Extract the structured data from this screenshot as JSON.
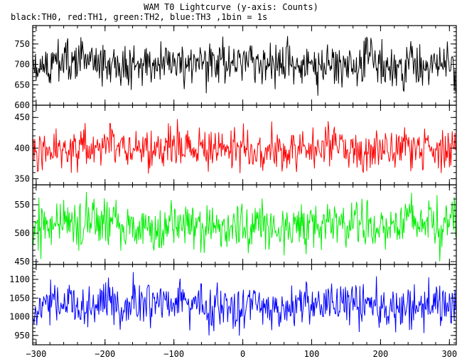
{
  "title": "WAM T0 Lightcurve (y-axis: Counts)",
  "subtitle": "black:TH0, red:TH1, green:TH2, blue:TH3 ,1bin = 1s",
  "chart_data": {
    "type": "line",
    "x": {
      "range": [
        -305,
        310
      ],
      "ticks": [
        -300,
        -200,
        -100,
        0,
        100,
        200,
        300
      ]
    },
    "grid": false,
    "panels": [
      {
        "name": "TH0",
        "color": "#000000",
        "ylim": [
          600,
          795
        ],
        "ticks": [
          600,
          650,
          700,
          750
        ],
        "mean": 700,
        "amp": 26,
        "seed": 11
      },
      {
        "name": "TH1",
        "color": "#ff0000",
        "ylim": [
          340,
          470
        ],
        "ticks": [
          350,
          400,
          450
        ],
        "mean": 400,
        "amp": 18,
        "seed": 23
      },
      {
        "name": "TH2",
        "color": "#00ee00",
        "ylim": [
          445,
          585
        ],
        "ticks": [
          450,
          500,
          550
        ],
        "mean": 515,
        "amp": 22,
        "seed": 37
      },
      {
        "name": "TH3",
        "color": "#0000ff",
        "ylim": [
          925,
          1140
        ],
        "ticks": [
          950,
          1000,
          1050,
          1100
        ],
        "mean": 1035,
        "amp": 30,
        "seed": 53
      }
    ]
  }
}
